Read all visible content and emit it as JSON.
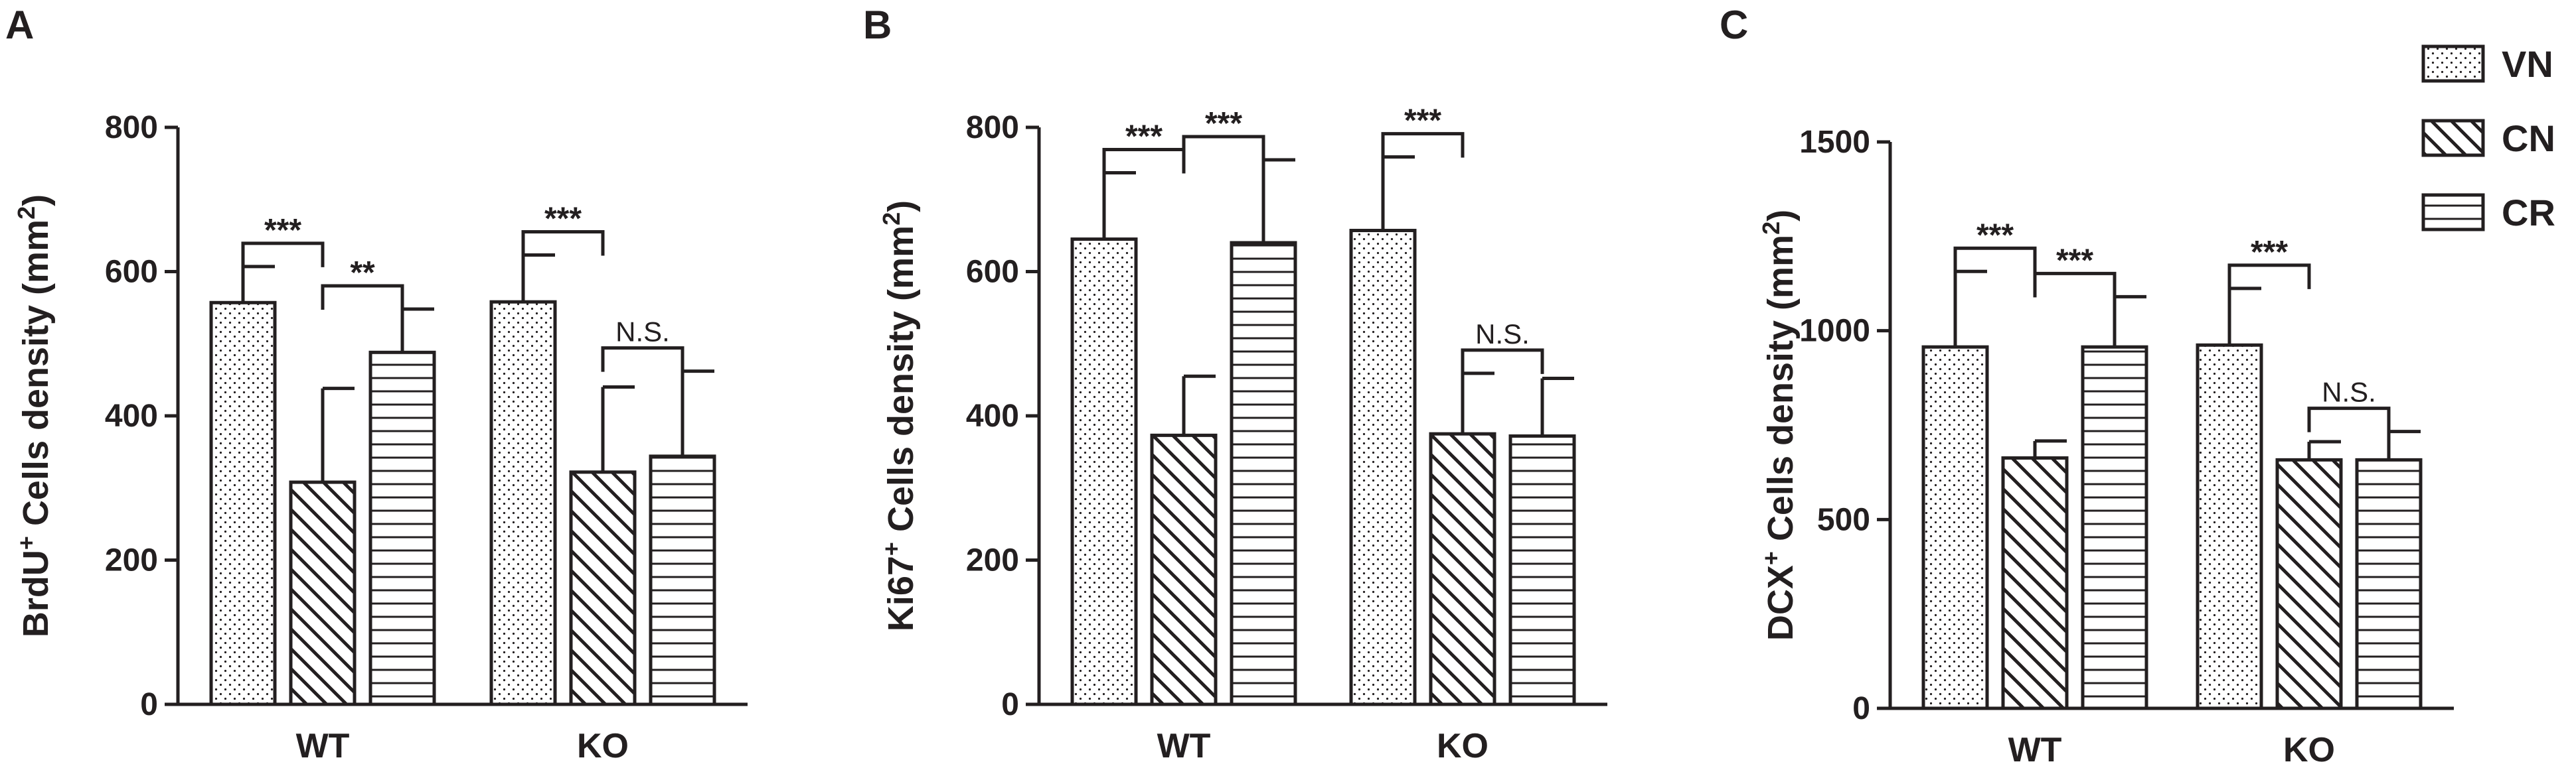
{
  "colors": {
    "ink": "#231f20",
    "fill": "#ffffff"
  },
  "legend": [
    {
      "name": "VN",
      "pattern": "dots"
    },
    {
      "name": "CN",
      "pattern": "diagonal"
    },
    {
      "name": "CR",
      "pattern": "horizontal"
    }
  ],
  "chart_data": [
    {
      "panel": "A",
      "type": "bar",
      "ylabel_main": "BrdU",
      "ylabel_sup": "+",
      "ylabel_rest": " Cells density (mm",
      "ylabel_unit_sup": "2",
      "ylabel_end": ")",
      "ylim": [
        0,
        800
      ],
      "yticks": [
        0,
        200,
        400,
        600,
        800
      ],
      "categories": [
        "WT",
        "KO"
      ],
      "series": [
        {
          "name": "VN",
          "values": [
            557,
            558
          ],
          "errors": [
            50,
            65
          ]
        },
        {
          "name": "CN",
          "values": [
            308,
            322
          ],
          "errors": [
            130,
            118
          ]
        },
        {
          "name": "CR",
          "values": [
            488,
            344
          ],
          "errors": [
            60,
            118
          ]
        }
      ],
      "annotations": [
        {
          "group": 0,
          "from": 0,
          "to": 1,
          "label": "***"
        },
        {
          "group": 0,
          "from": 1,
          "to": 2,
          "label": "**"
        },
        {
          "group": 1,
          "from": 0,
          "to": 1,
          "label": "***"
        },
        {
          "group": 1,
          "from": 1,
          "to": 2,
          "label": "N.S."
        }
      ]
    },
    {
      "panel": "B",
      "type": "bar",
      "ylabel_main": "Ki67",
      "ylabel_sup": "+",
      "ylabel_rest": " Cells density (mm",
      "ylabel_unit_sup": "2",
      "ylabel_end": ")",
      "ylim": [
        0,
        800
      ],
      "yticks": [
        0,
        200,
        400,
        600,
        800
      ],
      "categories": [
        "WT",
        "KO"
      ],
      "series": [
        {
          "name": "VN",
          "values": [
            645,
            657
          ],
          "errors": [
            92,
            102
          ]
        },
        {
          "name": "CN",
          "values": [
            373,
            375
          ],
          "errors": [
            82,
            84
          ]
        },
        {
          "name": "CR",
          "values": [
            640,
            372
          ],
          "errors": [
            115,
            80
          ]
        }
      ],
      "annotations": [
        {
          "group": 0,
          "from": 0,
          "to": 1,
          "label": "***"
        },
        {
          "group": 0,
          "from": 1,
          "to": 2,
          "label": "***"
        },
        {
          "group": 1,
          "from": 0,
          "to": 1,
          "label": "***"
        },
        {
          "group": 1,
          "from": 1,
          "to": 2,
          "label": "N.S."
        }
      ]
    },
    {
      "panel": "C",
      "type": "bar",
      "ylabel_main": "DCX",
      "ylabel_sup": "+",
      "ylabel_rest": " Cells density (mm",
      "ylabel_unit_sup": "2",
      "ylabel_end": ")",
      "ylim": [
        0,
        1500
      ],
      "yticks": [
        0,
        500,
        1000,
        1500
      ],
      "categories": [
        "WT",
        "KO"
      ],
      "series": [
        {
          "name": "VN",
          "values": [
            957,
            962
          ],
          "errors": [
            200,
            150
          ]
        },
        {
          "name": "CN",
          "values": [
            663,
            658
          ],
          "errors": [
            45,
            48
          ]
        },
        {
          "name": "CR",
          "values": [
            957,
            658
          ],
          "errors": [
            133,
            75
          ]
        }
      ],
      "annotations": [
        {
          "group": 0,
          "from": 0,
          "to": 1,
          "label": "***"
        },
        {
          "group": 0,
          "from": 1,
          "to": 2,
          "label": "***"
        },
        {
          "group": 1,
          "from": 0,
          "to": 1,
          "label": "***"
        },
        {
          "group": 1,
          "from": 1,
          "to": 2,
          "label": "N.S."
        }
      ]
    }
  ]
}
